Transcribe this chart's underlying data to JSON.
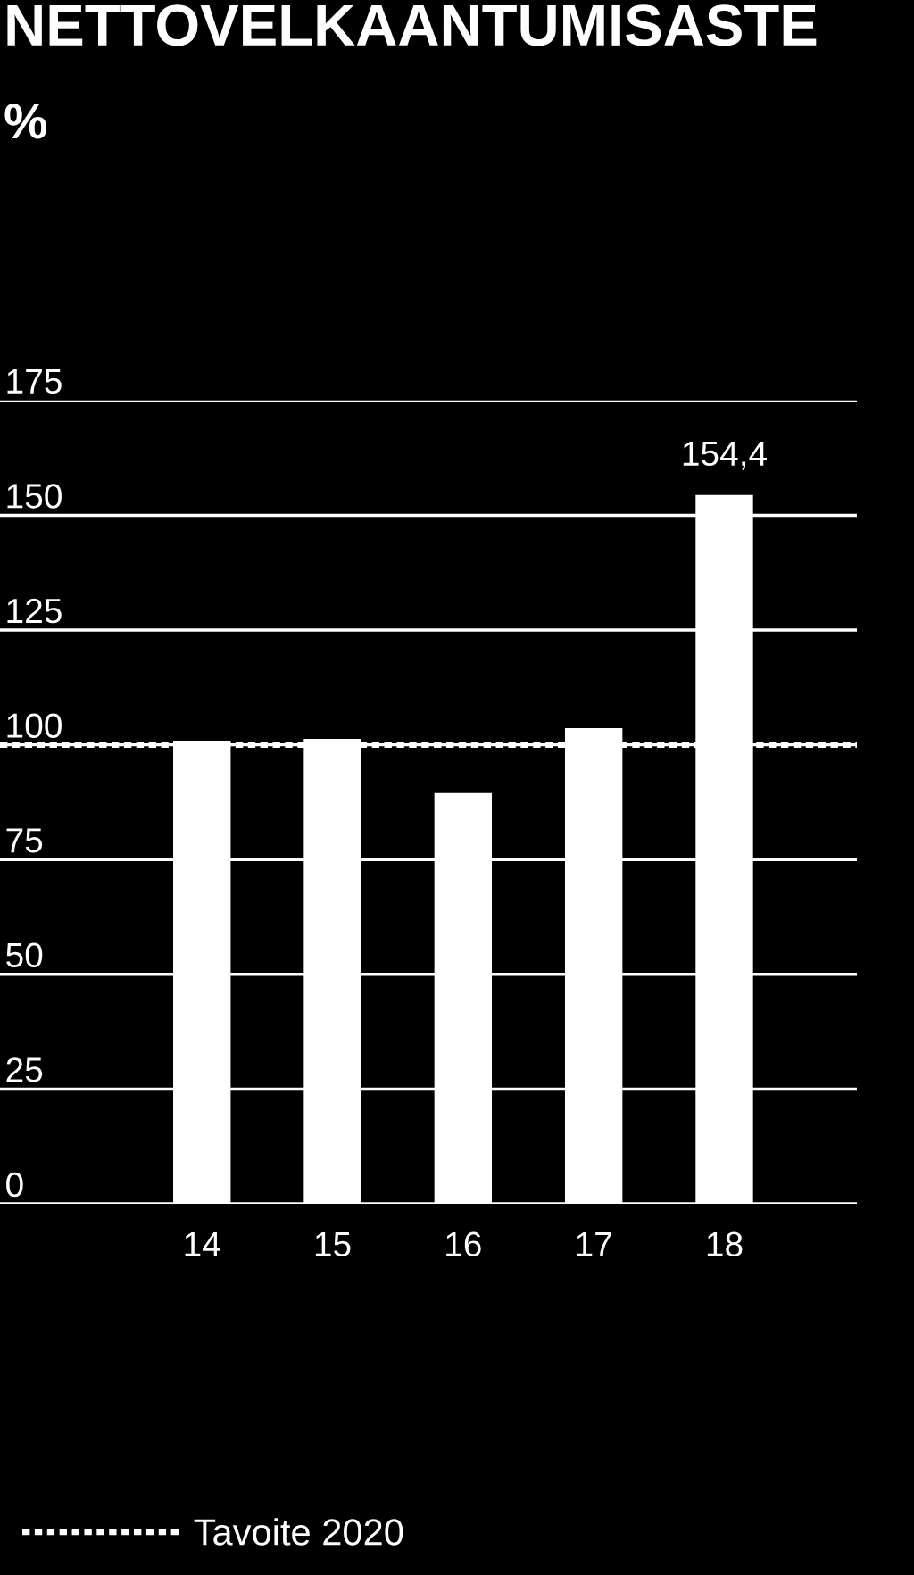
{
  "chart_data": {
    "type": "bar",
    "title": "NETTOVELKAANTUMISASTE",
    "subtitle": "%",
    "categories": [
      "14",
      "15",
      "16",
      "17",
      "18"
    ],
    "values": [
      100.9,
      101.3,
      89.5,
      103.6,
      154.4
    ],
    "value_labels": [
      null,
      null,
      null,
      null,
      "154,4"
    ],
    "color": "#ffffff",
    "ylim": [
      0,
      175
    ],
    "yticks": [
      0,
      25,
      50,
      75,
      100,
      125,
      150,
      175
    ],
    "grid": "y",
    "ref_lines": [
      {
        "axis": "y",
        "value": 100,
        "label": "Tavoite 2020",
        "color": "#ffffff",
        "line_style": "dotted"
      }
    ],
    "legend": "bottom"
  }
}
